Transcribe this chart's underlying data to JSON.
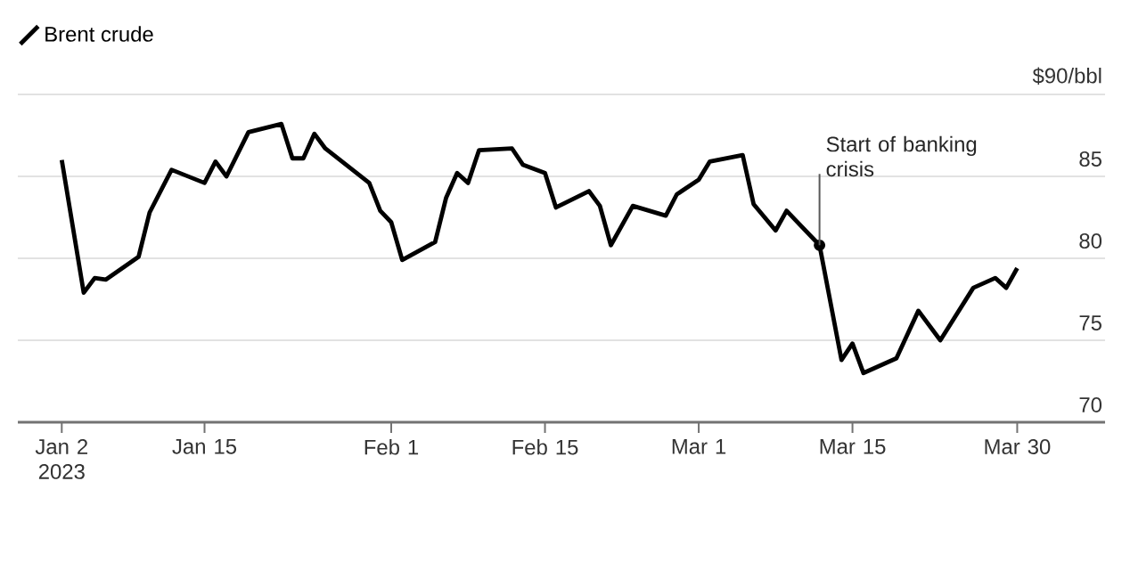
{
  "chart_data": {
    "type": "line",
    "x": [
      "2023-01-02",
      "2023-01-04",
      "2023-01-05",
      "2023-01-06",
      "2023-01-09",
      "2023-01-10",
      "2023-01-12",
      "2023-01-15",
      "2023-01-16",
      "2023-01-17",
      "2023-01-19",
      "2023-01-22",
      "2023-01-23",
      "2023-01-24",
      "2023-01-25",
      "2023-01-26",
      "2023-01-30",
      "2023-01-31",
      "2023-02-01",
      "2023-02-02",
      "2023-02-05",
      "2023-02-06",
      "2023-02-07",
      "2023-02-08",
      "2023-02-09",
      "2023-02-12",
      "2023-02-13",
      "2023-02-15",
      "2023-02-16",
      "2023-02-19",
      "2023-02-20",
      "2023-02-21",
      "2023-02-23",
      "2023-02-26",
      "2023-02-27",
      "2023-03-01",
      "2023-03-02",
      "2023-03-05",
      "2023-03-06",
      "2023-03-08",
      "2023-03-09",
      "2023-03-12",
      "2023-03-14",
      "2023-03-15",
      "2023-03-16",
      "2023-03-19",
      "2023-03-21",
      "2023-03-23",
      "2023-03-26",
      "2023-03-28",
      "2023-03-29",
      "2023-03-30"
    ],
    "series": [
      {
        "name": "Brent crude",
        "color": "#000000",
        "values": [
          86.0,
          77.9,
          78.8,
          78.7,
          80.1,
          82.8,
          85.4,
          84.6,
          85.9,
          85.0,
          87.7,
          88.2,
          86.1,
          86.1,
          87.6,
          86.7,
          84.6,
          82.9,
          82.2,
          79.9,
          81.0,
          83.7,
          85.2,
          84.6,
          86.6,
          86.7,
          85.7,
          85.2,
          83.1,
          84.1,
          83.2,
          80.8,
          83.2,
          82.6,
          83.9,
          84.8,
          85.9,
          86.3,
          83.3,
          81.7,
          82.9,
          80.8,
          73.8,
          74.8,
          73.0,
          73.9,
          76.8,
          75.0,
          78.2,
          78.8,
          78.2,
          79.4
        ]
      }
    ],
    "xlim": [
      "2022-12-29",
      "2023-04-07"
    ],
    "xticks": [
      {
        "value": "2023-01-02",
        "label": "Jan 2 2023"
      },
      {
        "value": "2023-01-15",
        "label": "Jan 15"
      },
      {
        "value": "2023-02-01",
        "label": "Feb 1"
      },
      {
        "value": "2023-02-15",
        "label": "Feb 15"
      },
      {
        "value": "2023-03-01",
        "label": "Mar 1"
      },
      {
        "value": "2023-03-15",
        "label": "Mar 15"
      },
      {
        "value": "2023-03-30",
        "label": "Mar 30"
      }
    ],
    "ylim": [
      70,
      90
    ],
    "yticks": [
      {
        "value": 90,
        "label": "$90/bbl"
      },
      85,
      80,
      75,
      70
    ],
    "grid": "y",
    "legend": "top left",
    "line_style": "solid",
    "marker": "none",
    "annotations": [
      {
        "text": "Start of banking crisis",
        "x": "2023-03-12",
        "y": 80.8
      }
    ]
  }
}
